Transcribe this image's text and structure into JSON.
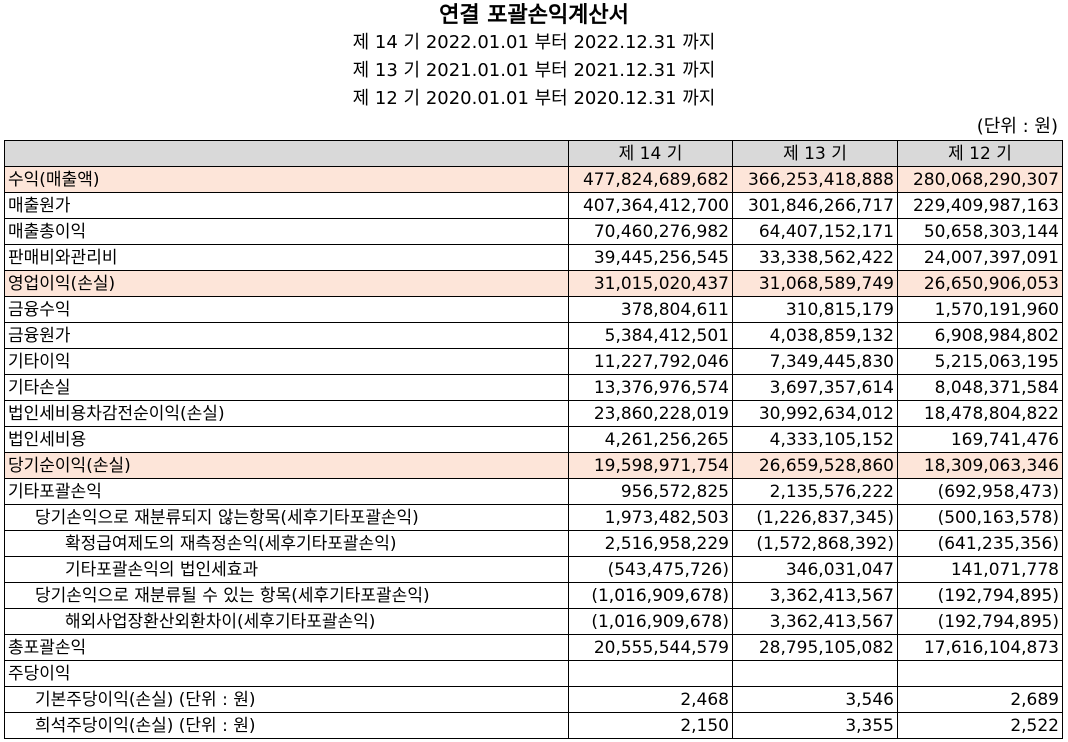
{
  "title": "연결 포괄손익계산서",
  "periods": [
    "제 14 기 2022.01.01 부터 2022.12.31 까지",
    "제 13 기 2021.01.01 부터 2021.12.31 까지",
    "제 12 기 2020.01.01 부터 2020.12.31 까지"
  ],
  "unit": "(단위 : 원)",
  "columns": [
    "",
    "제 14 기",
    "제 13 기",
    "제 12 기"
  ],
  "rows": [
    {
      "label": "수익(매출액)",
      "v": [
        "477,824,689,682",
        "366,253,418,888",
        "280,068,290,307"
      ]
    },
    {
      "label": "매출원가",
      "v": [
        "407,364,412,700",
        "301,846,266,717",
        "229,409,987,163"
      ]
    },
    {
      "label": "매출총이익",
      "v": [
        "70,460,276,982",
        "64,407,152,171",
        "50,658,303,144"
      ]
    },
    {
      "label": "판매비와관리비",
      "v": [
        "39,445,256,545",
        "33,338,562,422",
        "24,007,397,091"
      ]
    },
    {
      "label": "영업이익(손실)",
      "v": [
        "31,015,020,437",
        "31,068,589,749",
        "26,650,906,053"
      ]
    },
    {
      "label": "금융수익",
      "v": [
        "378,804,611",
        "310,815,179",
        "1,570,191,960"
      ]
    },
    {
      "label": "금융원가",
      "v": [
        "5,384,412,501",
        "4,038,859,132",
        "6,908,984,802"
      ]
    },
    {
      "label": "기타이익",
      "v": [
        "11,227,792,046",
        "7,349,445,830",
        "5,215,063,195"
      ]
    },
    {
      "label": "기타손실",
      "v": [
        "13,376,976,574",
        "3,697,357,614",
        "8,048,371,584"
      ]
    },
    {
      "label": "법인세비용차감전순이익(손실)",
      "v": [
        "23,860,228,019",
        "30,992,634,012",
        "18,478,804,822"
      ]
    },
    {
      "label": "법인세비용",
      "v": [
        "4,261,256,265",
        "4,333,105,152",
        "169,741,476"
      ]
    },
    {
      "label": "당기순이익(손실)",
      "v": [
        "19,598,971,754",
        "26,659,528,860",
        "18,309,063,346"
      ]
    },
    {
      "label": "기타포괄손익",
      "v": [
        "956,572,825",
        "2,135,576,222",
        "(692,958,473)"
      ]
    },
    {
      "label": "당기손익으로 재분류되지 않는항목(세후기타포괄손익)",
      "v": [
        "1,973,482,503",
        "(1,226,837,345)",
        "(500,163,578)"
      ]
    },
    {
      "label": "확정급여제도의 재측정손익(세후기타포괄손익)",
      "v": [
        "2,516,958,229",
        "(1,572,868,392)",
        "(641,235,356)"
      ]
    },
    {
      "label": "기타포괄손익의 법인세효과",
      "v": [
        "(543,475,726)",
        "346,031,047",
        "141,071,778"
      ]
    },
    {
      "label": "당기손익으로 재분류될 수 있는 항목(세후기타포괄손익)",
      "v": [
        "(1,016,909,678)",
        "3,362,413,567",
        "(192,794,895)"
      ]
    },
    {
      "label": "해외사업장환산외환차이(세후기타포괄손익)",
      "v": [
        "(1,016,909,678)",
        "3,362,413,567",
        "(192,794,895)"
      ]
    },
    {
      "label": "총포괄손익",
      "v": [
        "20,555,544,579",
        "28,795,105,082",
        "17,616,104,873"
      ]
    },
    {
      "label": "주당이익",
      "v": [
        "",
        "",
        ""
      ]
    },
    {
      "label": "기본주당이익(손실) (단위 : 원)",
      "v": [
        "2,468",
        "3,546",
        "2,689"
      ]
    },
    {
      "label": "희석주당이익(손실) (단위 : 원)",
      "v": [
        "2,150",
        "3,355",
        "2,522"
      ]
    }
  ]
}
